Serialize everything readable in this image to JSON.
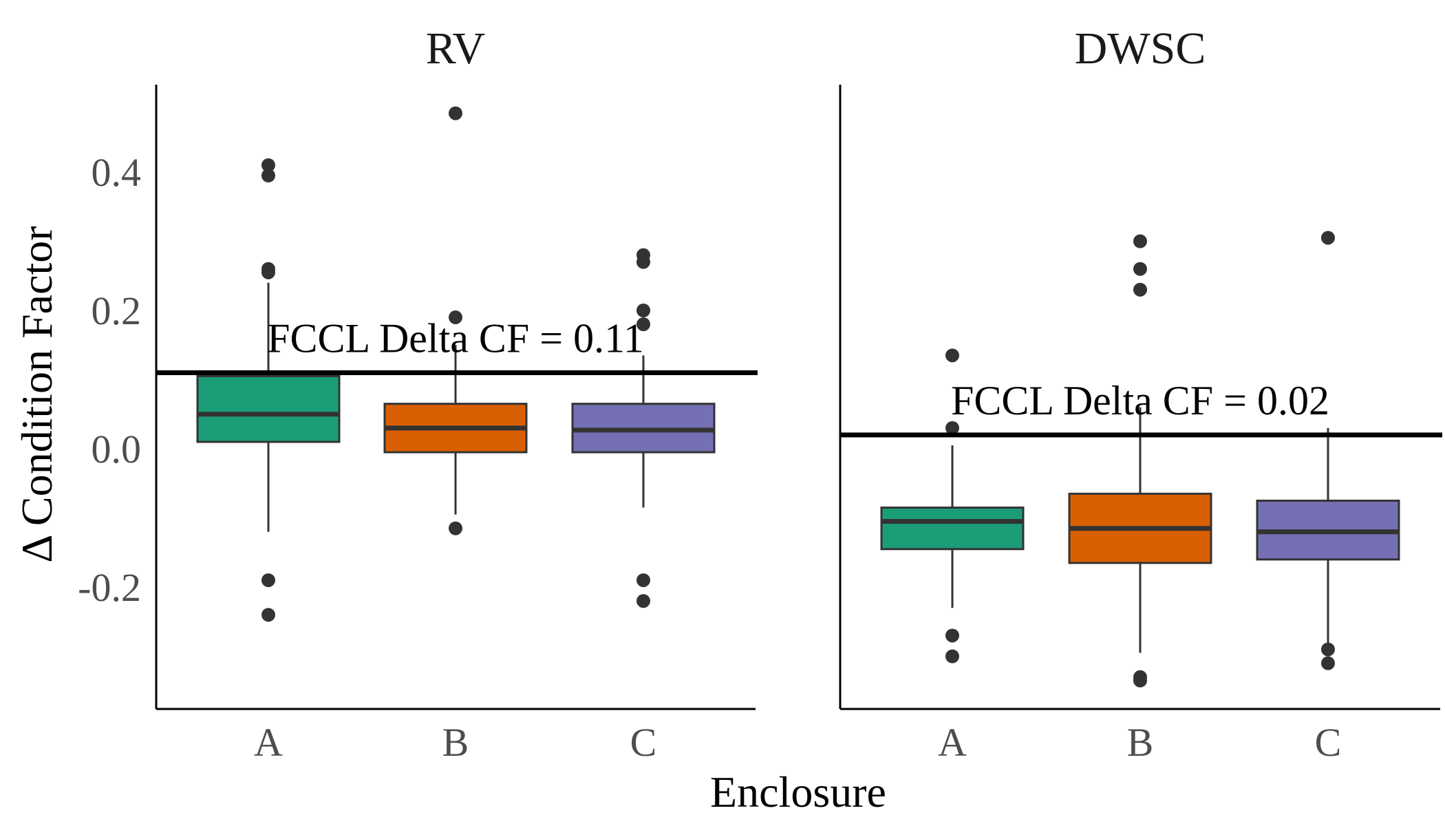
{
  "chart_data": {
    "type": "boxplot",
    "xlabel": "Enclosure",
    "ylabel": "Δ Condition Factor",
    "ylim": [
      -0.38,
      0.52
    ],
    "yticks": [
      "0.4",
      "0.2",
      "0.0",
      "-0.2"
    ],
    "ytick_values": [
      0.4,
      0.2,
      0.0,
      -0.2
    ],
    "categories": [
      "A",
      "B",
      "C"
    ],
    "colors": {
      "A": "#1b9e77",
      "B": "#d95f02",
      "C": "#7570b3"
    },
    "grid": false,
    "legend": "none",
    "panels": [
      {
        "title": "RV",
        "reference": {
          "value": 0.11,
          "label": "FCCL Delta CF = 0.11"
        },
        "boxes": [
          {
            "category": "A",
            "q1": 0.01,
            "median": 0.05,
            "q3": 0.105,
            "whisker_low": -0.12,
            "whisker_high": 0.24,
            "outliers": [
              0.41,
              0.395,
              0.26,
              0.255,
              -0.19,
              -0.24
            ]
          },
          {
            "category": "B",
            "q1": -0.005,
            "median": 0.03,
            "q3": 0.065,
            "whisker_low": -0.095,
            "whisker_high": 0.15,
            "outliers": [
              0.485,
              0.19,
              -0.115
            ]
          },
          {
            "category": "C",
            "q1": -0.005,
            "median": 0.027,
            "q3": 0.065,
            "whisker_low": -0.085,
            "whisker_high": 0.135,
            "outliers": [
              0.28,
              0.27,
              0.2,
              0.18,
              -0.19,
              -0.22
            ]
          }
        ]
      },
      {
        "title": "DWSC",
        "reference": {
          "value": 0.02,
          "label": "FCCL Delta CF = 0.02"
        },
        "boxes": [
          {
            "category": "A",
            "q1": -0.145,
            "median": -0.105,
            "q3": -0.085,
            "whisker_low": -0.23,
            "whisker_high": 0.005,
            "outliers": [
              0.135,
              0.03,
              -0.27,
              -0.3
            ]
          },
          {
            "category": "B",
            "q1": -0.165,
            "median": -0.115,
            "q3": -0.065,
            "whisker_low": -0.295,
            "whisker_high": 0.06,
            "outliers": [
              0.3,
              0.26,
              0.23,
              -0.33,
              -0.335
            ]
          },
          {
            "category": "C",
            "q1": -0.16,
            "median": -0.12,
            "q3": -0.075,
            "whisker_low": -0.29,
            "whisker_high": 0.03,
            "outliers": [
              0.305,
              -0.29,
              -0.31
            ]
          }
        ]
      }
    ]
  }
}
